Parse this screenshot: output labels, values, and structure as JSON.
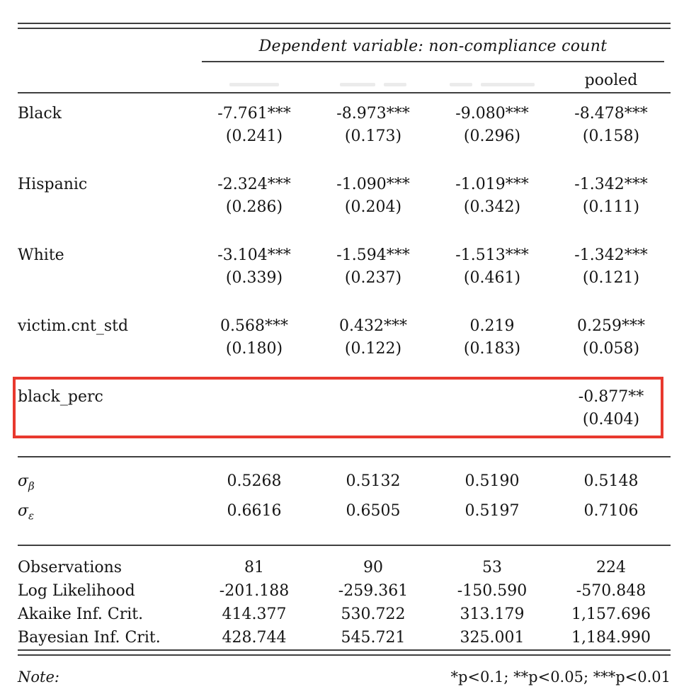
{
  "table": {
    "dep_var_header": "Dependent variable: non-compliance count",
    "columns": [
      "",
      "",
      "",
      "pooled"
    ],
    "coef_rows": [
      {
        "label": "Black",
        "est": [
          "-7.761***",
          "-8.973***",
          "-9.080***",
          "-8.478***"
        ],
        "se": [
          "(0.241)",
          "(0.173)",
          "(0.296)",
          "(0.158)"
        ]
      },
      {
        "label": "Hispanic",
        "est": [
          "-2.324***",
          "-1.090***",
          "-1.019***",
          "-1.342***"
        ],
        "se": [
          "(0.286)",
          "(0.204)",
          "(0.342)",
          "(0.111)"
        ]
      },
      {
        "label": "White",
        "est": [
          "-3.104***",
          "-1.594***",
          "-1.513***",
          "-1.342***"
        ],
        "se": [
          "(0.339)",
          "(0.237)",
          "(0.461)",
          "(0.121)"
        ]
      },
      {
        "label": "victim.cnt_std",
        "est": [
          "0.568***",
          "0.432***",
          "0.219",
          "0.259***"
        ],
        "se": [
          "(0.180)",
          "(0.122)",
          "(0.183)",
          "(0.058)"
        ]
      },
      {
        "label": "black_perc",
        "est": [
          "",
          "",
          "",
          "-0.877**"
        ],
        "se": [
          "",
          "",
          "",
          "(0.404)"
        ],
        "highlighted": true
      }
    ],
    "highlight": {
      "color": "#e8392e",
      "box_style": "border: 4px solid #e8392e;"
    },
    "sigma_rows": [
      {
        "label_base": "σ",
        "label_sub": "β",
        "values": [
          "0.5268",
          "0.5132",
          "0.5190",
          "0.5148"
        ]
      },
      {
        "label_base": "σ",
        "label_sub": "ε",
        "values": [
          "0.6616",
          "0.6505",
          "0.5197",
          "0.7106"
        ]
      }
    ],
    "stats_rows": [
      {
        "label": "Observations",
        "values": [
          "81",
          "90",
          "53",
          "224"
        ]
      },
      {
        "label": "Log Likelihood",
        "values": [
          "-201.188",
          "-259.361",
          "-150.590",
          "-570.848"
        ]
      },
      {
        "label": "Akaike Inf. Crit.",
        "values": [
          "414.377",
          "530.722",
          "313.179",
          "1,157.696"
        ]
      },
      {
        "label": "Bayesian Inf. Crit.",
        "values": [
          "428.744",
          "545.721",
          "325.001",
          "1,184.990"
        ]
      }
    ],
    "note_label": "Note:",
    "note_text": "*p<0.1; **p<0.05; ***p<0.01"
  }
}
